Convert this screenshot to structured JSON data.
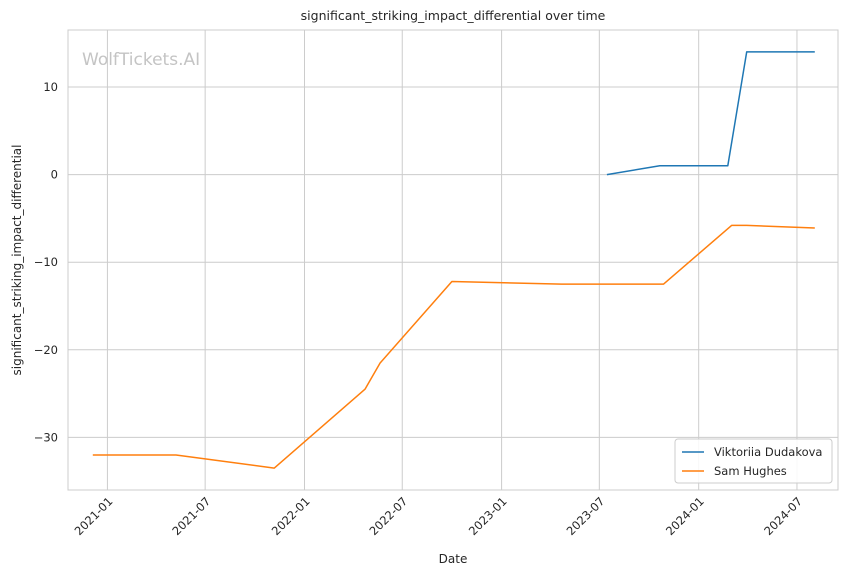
{
  "watermark": "WolfTickets.AI",
  "chart_data": {
    "type": "line",
    "title": "significant_striking_impact_differential over time",
    "xlabel": "Date",
    "ylabel": "significant_striking_impact_differential",
    "xlim": [
      "2020-10-20",
      "2024-09-15"
    ],
    "ylim": [
      -36,
      16.5
    ],
    "x_ticks": [
      "2021-01",
      "2021-07",
      "2022-01",
      "2022-07",
      "2023-01",
      "2023-07",
      "2024-01",
      "2024-07"
    ],
    "y_ticks": [
      10,
      0,
      -10,
      -20,
      -30
    ],
    "grid": true,
    "legend_position": "lower-right",
    "series": [
      {
        "name": "Viktoriia Dudakova",
        "color": "#1f77b4",
        "points": [
          {
            "x": "2023-07-15",
            "y": 0
          },
          {
            "x": "2023-10-21",
            "y": 1
          },
          {
            "x": "2024-02-24",
            "y": 1
          },
          {
            "x": "2024-03-30",
            "y": 14
          },
          {
            "x": "2024-08-03",
            "y": 14
          }
        ]
      },
      {
        "name": "Sam Hughes",
        "color": "#ff7f0e",
        "points": [
          {
            "x": "2020-12-05",
            "y": -32
          },
          {
            "x": "2021-05-08",
            "y": -32
          },
          {
            "x": "2021-11-06",
            "y": -33.5
          },
          {
            "x": "2022-04-23",
            "y": -24.5
          },
          {
            "x": "2022-05-21",
            "y": -21.5
          },
          {
            "x": "2022-10-01",
            "y": -12.2
          },
          {
            "x": "2023-04-22",
            "y": -12.5
          },
          {
            "x": "2023-10-28",
            "y": -12.5
          },
          {
            "x": "2024-03-02",
            "y": -5.8
          },
          {
            "x": "2024-03-30",
            "y": -5.8
          },
          {
            "x": "2024-08-03",
            "y": -6.1
          }
        ]
      }
    ]
  }
}
